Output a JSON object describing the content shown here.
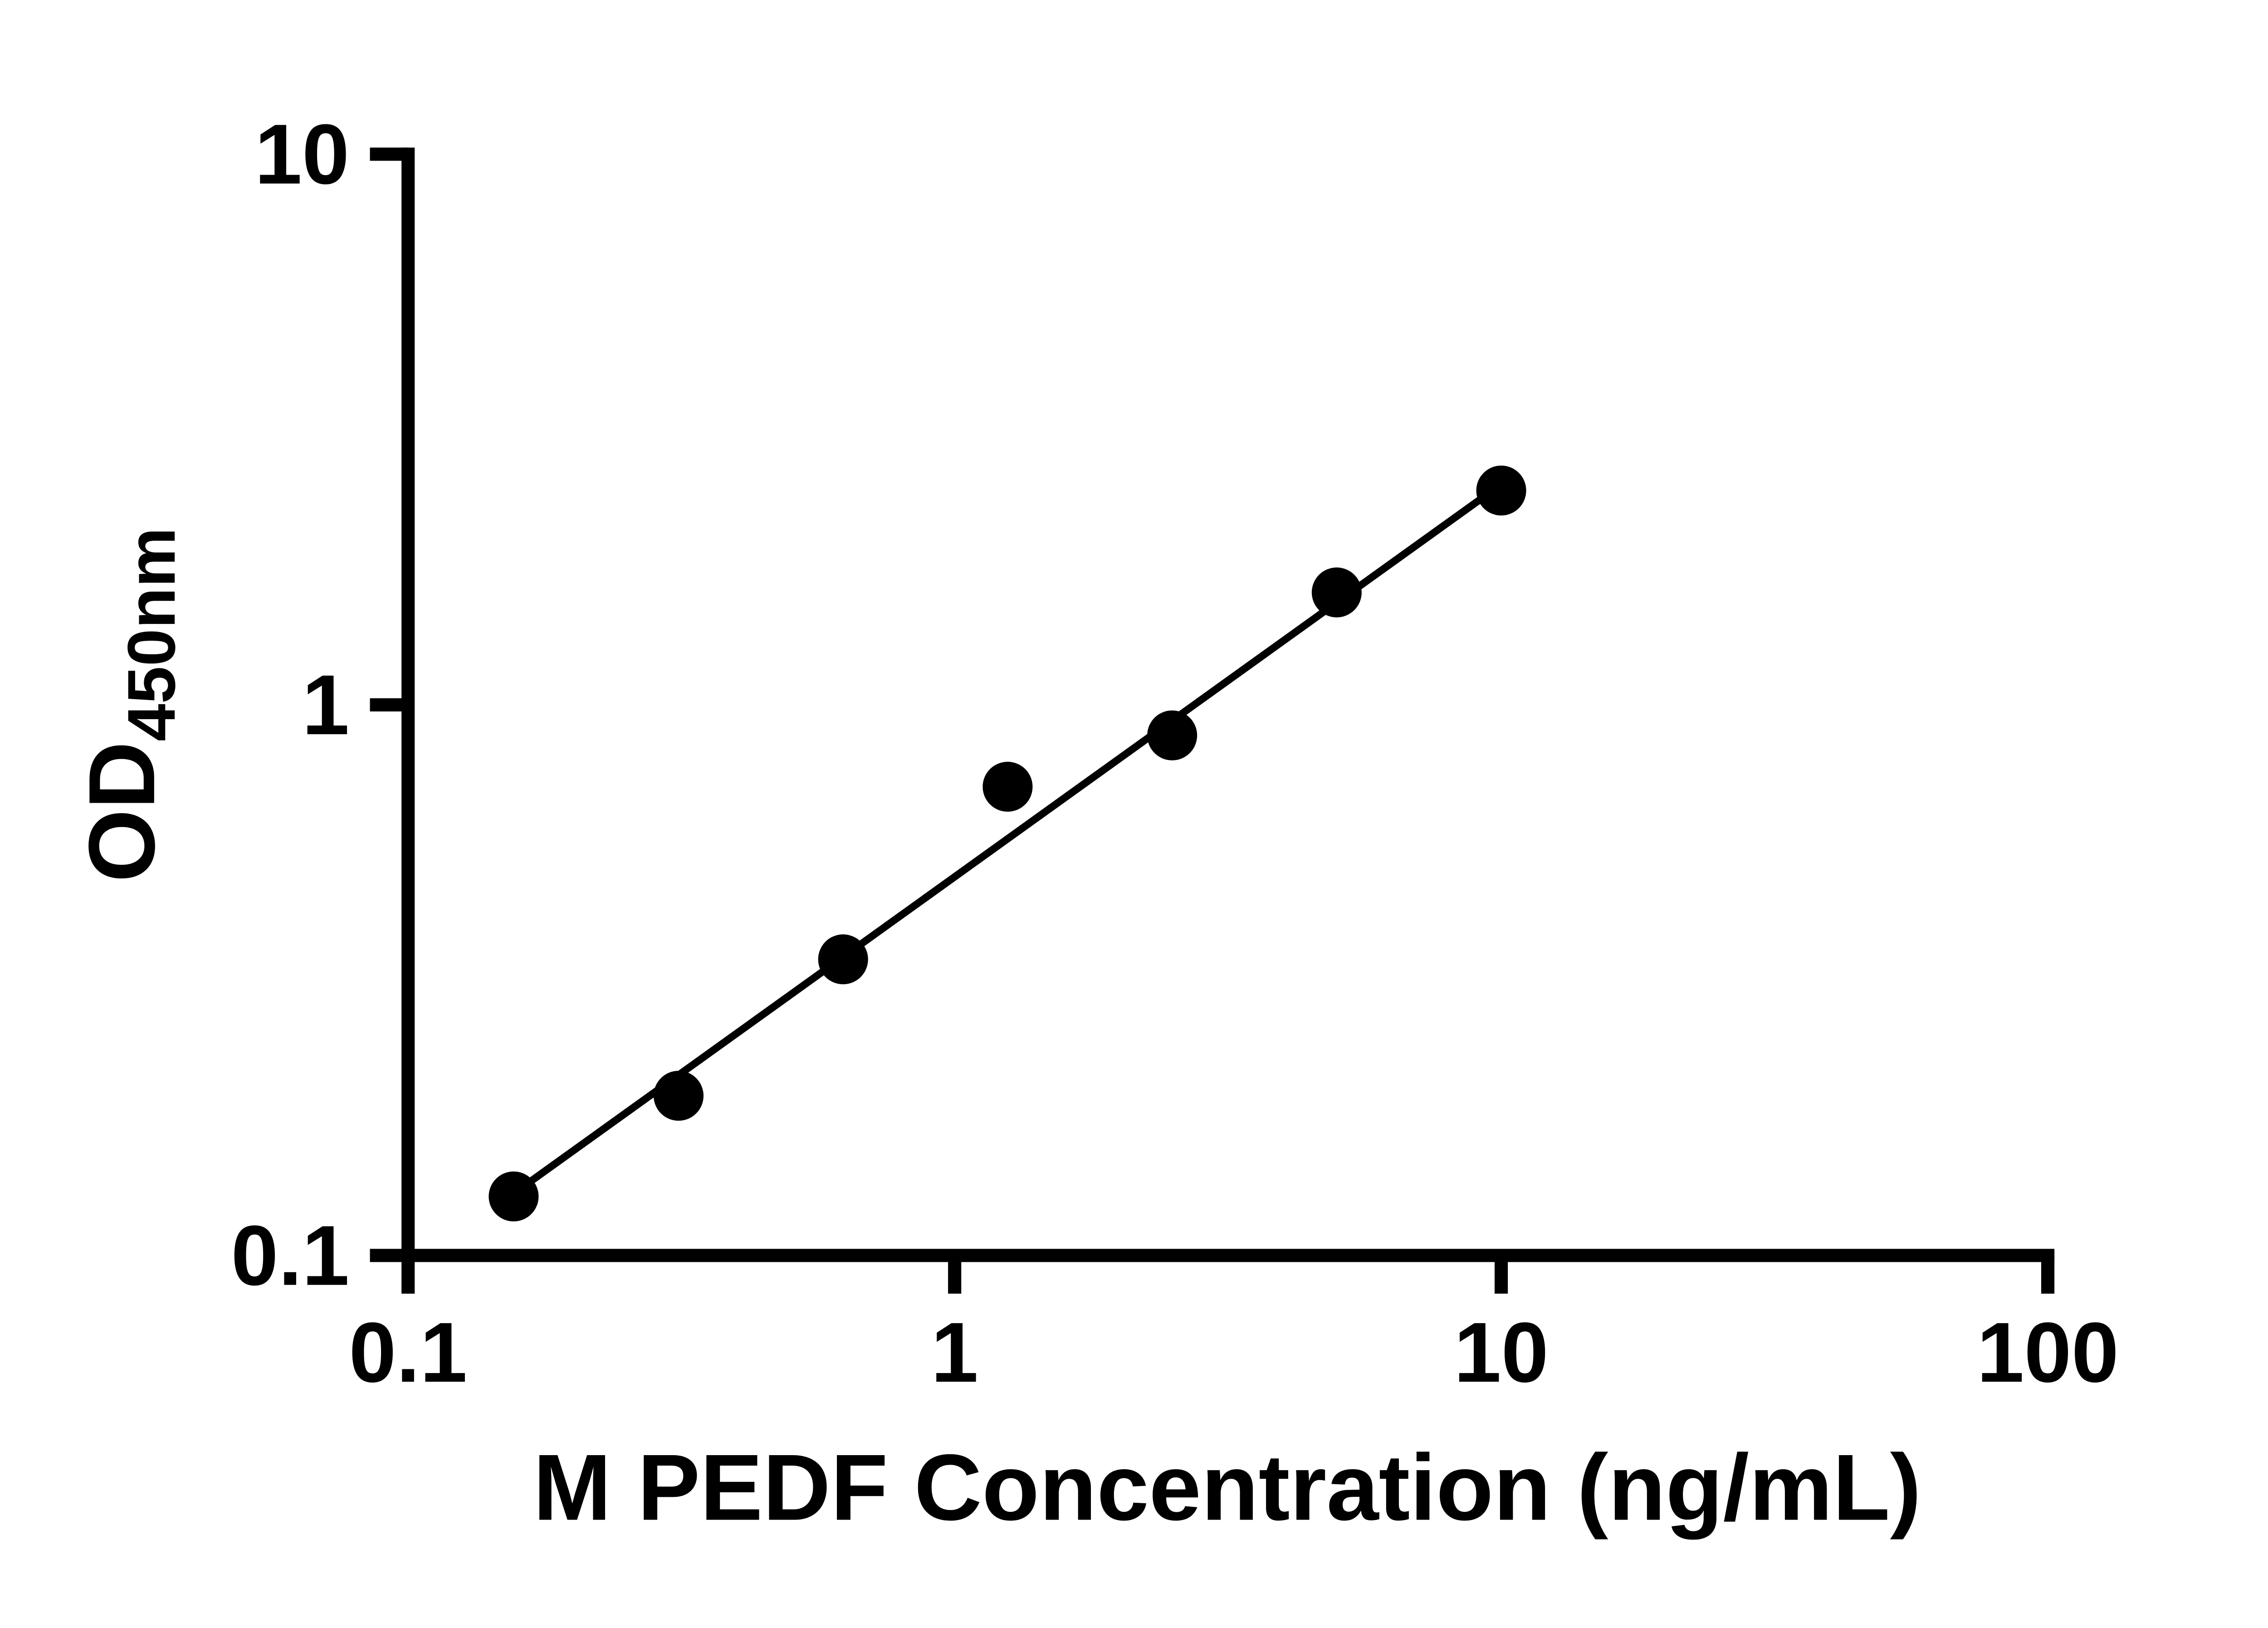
{
  "chart_data": {
    "type": "scatter",
    "title": "",
    "xlabel": "M PEDF Concentration (ng/mL)",
    "ylabel_main": "OD",
    "ylabel_sub": "450nm",
    "x_scale": "log",
    "y_scale": "log",
    "xlim": [
      0.1,
      100
    ],
    "ylim": [
      0.1,
      10
    ],
    "grid": false,
    "legend": null,
    "x_ticks": [
      {
        "value": 0.1,
        "label": "0.1"
      },
      {
        "value": 1,
        "label": "1"
      },
      {
        "value": 10,
        "label": "10"
      },
      {
        "value": 100,
        "label": "100"
      }
    ],
    "y_ticks": [
      {
        "value": 0.1,
        "label": "0.1"
      },
      {
        "value": 1,
        "label": "1"
      },
      {
        "value": 10,
        "label": "10"
      }
    ],
    "points": [
      {
        "x": 0.156,
        "y": 0.128
      },
      {
        "x": 0.3125,
        "y": 0.195
      },
      {
        "x": 0.625,
        "y": 0.345
      },
      {
        "x": 1.25,
        "y": 0.71
      },
      {
        "x": 2.5,
        "y": 0.88
      },
      {
        "x": 5,
        "y": 1.6
      },
      {
        "x": 10,
        "y": 2.45
      }
    ],
    "trend_line": {
      "x1": 0.15,
      "y1": 0.126,
      "x2": 10.2,
      "y2": 2.55
    },
    "colors": {
      "point": "#000000",
      "line": "#000000",
      "axis": "#000000"
    }
  }
}
